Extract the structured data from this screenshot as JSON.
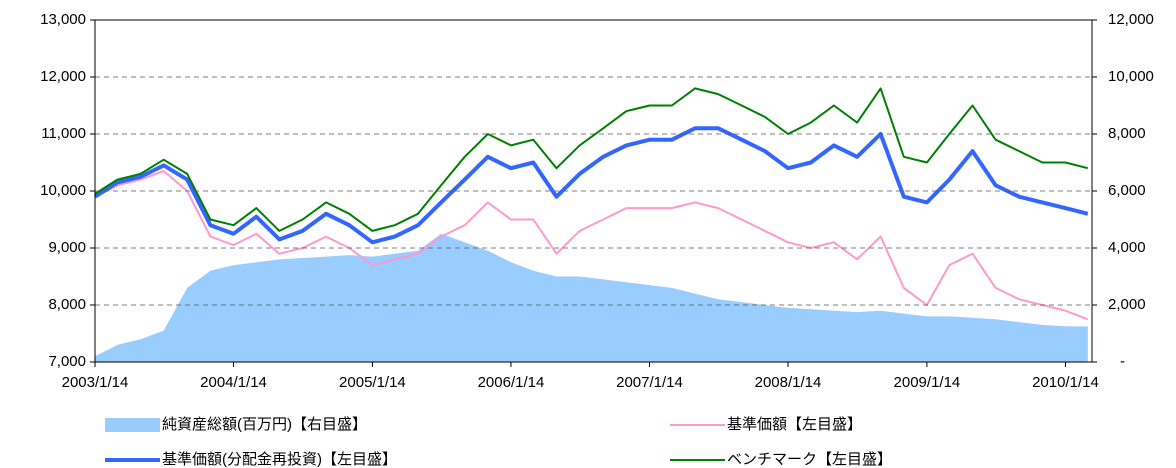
{
  "chart_data": {
    "type": "line",
    "x": [
      "2003/1/14",
      "2003/3/14",
      "2003/5/14",
      "2003/7/14",
      "2003/9/14",
      "2003/11/14",
      "2004/1/14",
      "2004/3/14",
      "2004/5/14",
      "2004/7/14",
      "2004/9/14",
      "2004/11/14",
      "2005/1/14",
      "2005/3/14",
      "2005/5/14",
      "2005/7/14",
      "2005/9/14",
      "2005/11/14",
      "2006/1/14",
      "2006/3/14",
      "2006/5/14",
      "2006/7/14",
      "2006/9/14",
      "2006/11/14",
      "2007/1/14",
      "2007/3/14",
      "2007/5/14",
      "2007/7/14",
      "2007/9/14",
      "2007/11/14",
      "2008/1/14",
      "2008/3/14",
      "2008/5/14",
      "2008/7/14",
      "2008/9/14",
      "2008/11/14",
      "2009/1/14",
      "2009/3/14",
      "2009/5/14",
      "2009/7/14",
      "2009/9/14",
      "2009/11/14",
      "2010/1/14",
      "2010/3/14"
    ],
    "series": [
      {
        "name": "純資産総額(百万円)【右目盛】",
        "color": "#99ccff",
        "axis": "y2",
        "style": "area",
        "values": [
          200,
          600,
          800,
          1100,
          2600,
          3200,
          3400,
          3500,
          3600,
          3650,
          3700,
          3750,
          3700,
          3800,
          3900,
          4500,
          4200,
          3900,
          3500,
          3200,
          3000,
          3000,
          2900,
          2800,
          2700,
          2600,
          2400,
          2200,
          2100,
          2000,
          1900,
          1850,
          1800,
          1750,
          1800,
          1700,
          1600,
          1600,
          1550,
          1500,
          1400,
          1300,
          1250,
          1250
        ]
      },
      {
        "name": "基準価額【左目盛】",
        "color": "#ff99cc",
        "values": [
          9900,
          10100,
          10200,
          10350,
          10000,
          9200,
          9050,
          9250,
          8900,
          9000,
          9200,
          9000,
          8700,
          8800,
          8900,
          9200,
          9400,
          9800,
          9500,
          9500,
          8900,
          9300,
          9500,
          9700,
          9700,
          9700,
          9800,
          9700,
          9500,
          9300,
          9100,
          9000,
          9100,
          8800,
          9200,
          8300,
          8000,
          8700,
          8900,
          8300,
          8100,
          8000,
          7900,
          7750
        ]
      },
      {
        "name": "基準価額(分配金再投資)【左目盛】",
        "color": "#3366ff",
        "values": [
          9900,
          10150,
          10250,
          10450,
          10200,
          9400,
          9250,
          9550,
          9150,
          9300,
          9600,
          9400,
          9100,
          9200,
          9400,
          9800,
          10200,
          10600,
          10400,
          10500,
          9900,
          10300,
          10600,
          10800,
          10900,
          10900,
          11100,
          11100,
          10900,
          10700,
          10400,
          10500,
          10800,
          10600,
          11000,
          9900,
          9800,
          10200,
          10700,
          10100,
          9900,
          9800,
          9700,
          9600
        ]
      },
      {
        "name": "ベンチマーク【左目盛】",
        "color": "#008000",
        "values": [
          9950,
          10200,
          10300,
          10550,
          10300,
          9500,
          9400,
          9700,
          9300,
          9500,
          9800,
          9600,
          9300,
          9400,
          9600,
          10100,
          10600,
          11000,
          10800,
          10900,
          10400,
          10800,
          11100,
          11400,
          11500,
          11500,
          11800,
          11700,
          11500,
          11300,
          11000,
          11200,
          11500,
          11200,
          11800,
          10600,
          10500,
          11000,
          11500,
          10900,
          10700,
          10500,
          10500,
          10400
        ]
      }
    ],
    "xlim": [
      "2003/1/14",
      "2010/3/25"
    ],
    "xticks": [
      "2003/1/14",
      "2004/1/14",
      "2005/1/14",
      "2006/1/14",
      "2007/1/14",
      "2008/1/14",
      "2009/1/14",
      "2010/1/14"
    ],
    "ylim": [
      7000,
      13000
    ],
    "yticks": [
      {
        "value": 7000,
        "label": "7,000"
      },
      {
        "value": 8000,
        "label": "8,000"
      },
      {
        "value": 9000,
        "label": "9,000"
      },
      {
        "value": 10000,
        "label": "10,000"
      },
      {
        "value": 11000,
        "label": "11,000"
      },
      {
        "value": 12000,
        "label": "12,000"
      },
      {
        "value": 13000,
        "label": "13,000"
      }
    ],
    "y2lim": [
      0,
      12000
    ],
    "y2ticks": [
      {
        "value": 0,
        "label": "-"
      },
      {
        "value": 2000,
        "label": "2,000"
      },
      {
        "value": 4000,
        "label": "4,000"
      },
      {
        "value": 6000,
        "label": "6,000"
      },
      {
        "value": 8000,
        "label": "8,000"
      },
      {
        "value": 10000,
        "label": "10,000"
      },
      {
        "value": 12000,
        "label": "12,000"
      }
    ],
    "grid": true,
    "legend": "bottom"
  }
}
